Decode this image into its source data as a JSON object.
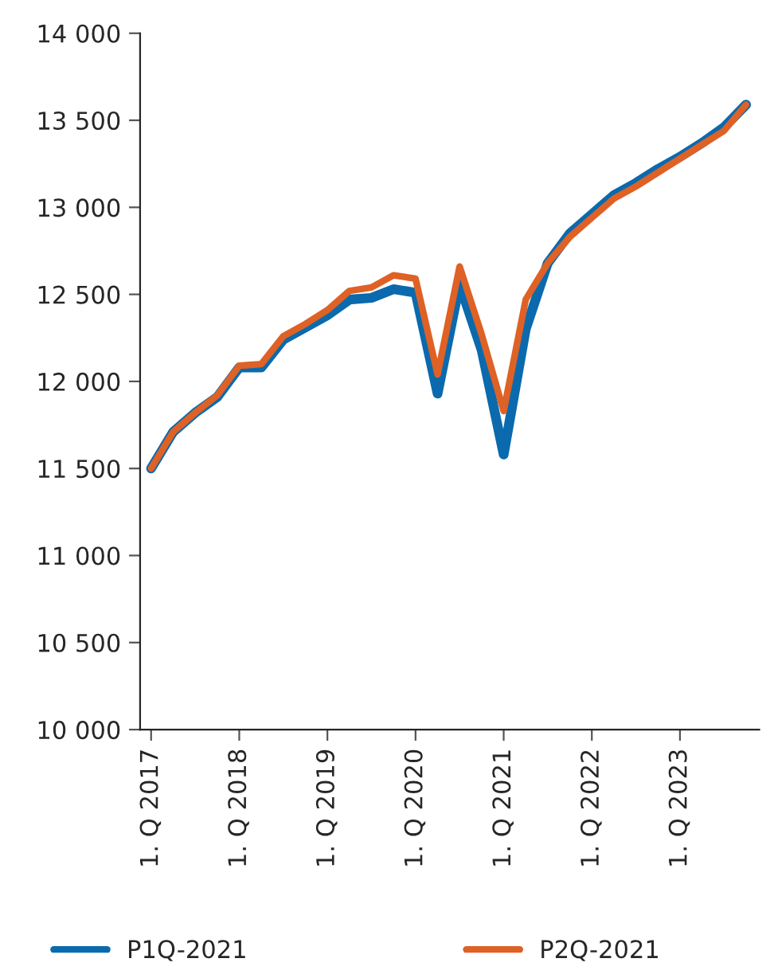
{
  "chart_data": {
    "type": "line",
    "categories": [
      "1. Q 2017",
      null,
      null,
      null,
      "1. Q 2018",
      null,
      null,
      null,
      "1. Q 2019",
      null,
      null,
      null,
      "1. Q 2020",
      null,
      null,
      null,
      "1. Q 2021",
      null,
      null,
      null,
      "1. Q 2022",
      null,
      null,
      null,
      "1. Q 2023",
      null,
      null,
      null
    ],
    "series": [
      {
        "name": "P1Q-2021",
        "color": "#0a6aad",
        "values": [
          11500,
          11710,
          11820,
          11910,
          12080,
          12080,
          12240,
          12310,
          12380,
          12470,
          12480,
          12530,
          12510,
          11930,
          12560,
          12180,
          11580,
          12300,
          12680,
          12850,
          12960,
          13070,
          13140,
          13220,
          13290,
          13370,
          13460,
          13590
        ]
      },
      {
        "name": "P2Q-2021",
        "color": "#de6126",
        "values": [
          11500,
          11710,
          11820,
          11920,
          12090,
          12100,
          12260,
          12330,
          12410,
          12520,
          12540,
          12610,
          12590,
          12040,
          12660,
          12270,
          11830,
          12470,
          12680,
          12830,
          12940,
          13050,
          13120,
          13200,
          13280,
          13360,
          13440,
          13590
        ]
      }
    ],
    "ylim": [
      10000,
      14000
    ],
    "yticks": [
      {
        "value": 10000,
        "label": "10 000"
      },
      {
        "value": 10500,
        "label": "10 500"
      },
      {
        "value": 11000,
        "label": "11 000"
      },
      {
        "value": 11500,
        "label": "11 500"
      },
      {
        "value": 12000,
        "label": "12 000"
      },
      {
        "value": 12500,
        "label": "12 500"
      },
      {
        "value": 13000,
        "label": "13 000"
      },
      {
        "value": 13500,
        "label": "13 500"
      },
      {
        "value": 14000,
        "label": "14 000"
      }
    ],
    "grid": false,
    "legend": "bottom",
    "line_style": "solid",
    "marker": "none"
  }
}
